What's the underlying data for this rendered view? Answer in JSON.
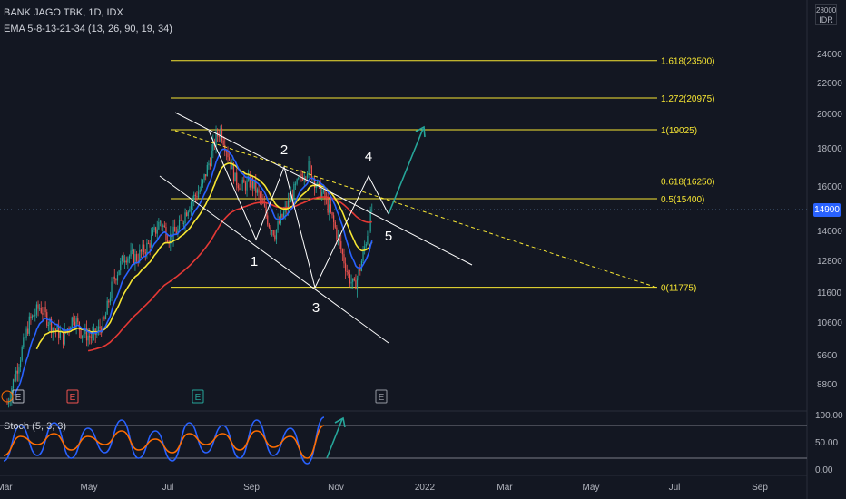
{
  "header": {
    "symbol_line": "BANK JAGO TBK, 1D, IDX",
    "indicator_line": "EMA 5-8-13-21-34 (13, 26, 90, 19, 34)"
  },
  "currency": {
    "top": "28000",
    "unit": "IDR"
  },
  "last_price": "14900",
  "colors": {
    "background": "#131722",
    "up": "#26a69a",
    "down": "#ef5350",
    "ema_fast": "#2962ff",
    "ema_mid": "#f7e633",
    "ema_slow": "#e53935",
    "fib": "#f7e633",
    "trend": "#ffffff",
    "projection": "#26a69a",
    "stoch_k": "#2962ff",
    "stoch_d": "#ff6d00"
  },
  "chart_data": [
    {
      "type": "line",
      "title": "",
      "x_ticks": [
        "Mar",
        "May",
        "Jul",
        "Sep",
        "Nov",
        "2022",
        "Mar",
        "May",
        "Jul",
        "Sep"
      ],
      "y_ticks": [
        "24000",
        "22000",
        "20000",
        "18000",
        "16000",
        "14000",
        "12800",
        "11600",
        "10600",
        "9600",
        "8800"
      ],
      "y_scale": "log",
      "ylim": [
        7900,
        28000
      ],
      "ohlc_summary": {
        "low_march": 8300,
        "peak_july": 19025,
        "low_august": 13900,
        "peak_september": 17000,
        "low_october": 11775,
        "last_close": 14900
      },
      "fibonacci_levels": [
        {
          "label": "1.618(23500)",
          "value": 23500
        },
        {
          "label": "1.272(20975)",
          "value": 20975
        },
        {
          "label": "1(19025)",
          "value": 19025
        },
        {
          "label": "0.618(16250)",
          "value": 16250
        },
        {
          "label": "0.5(15400)",
          "value": 15400
        },
        {
          "label": "0(11775)",
          "value": 11775
        }
      ],
      "wave_labels": [
        "1",
        "2",
        "3",
        "4",
        "5"
      ],
      "event_markers": [
        "E",
        "E",
        "E",
        "E"
      ],
      "legend_position": "top-left",
      "grid": false
    },
    {
      "type": "line",
      "title": "Stoch (5, 3, 3)",
      "y_ticks": [
        "100.00",
        "50.00",
        "0.00"
      ],
      "ylim": [
        0,
        100
      ],
      "bands": [
        80,
        20
      ],
      "series": [
        {
          "values": [
            15,
            80,
            25,
            85,
            20,
            75,
            30,
            90,
            20,
            70,
            15,
            85,
            30,
            80,
            20,
            90,
            25,
            75,
            10,
            95
          ]
        },
        {
          "values": [
            25,
            60,
            45,
            65,
            35,
            60,
            45,
            70,
            35,
            55,
            30,
            65,
            45,
            65,
            35,
            70,
            40,
            60,
            20,
            80
          ]
        }
      ]
    }
  ]
}
